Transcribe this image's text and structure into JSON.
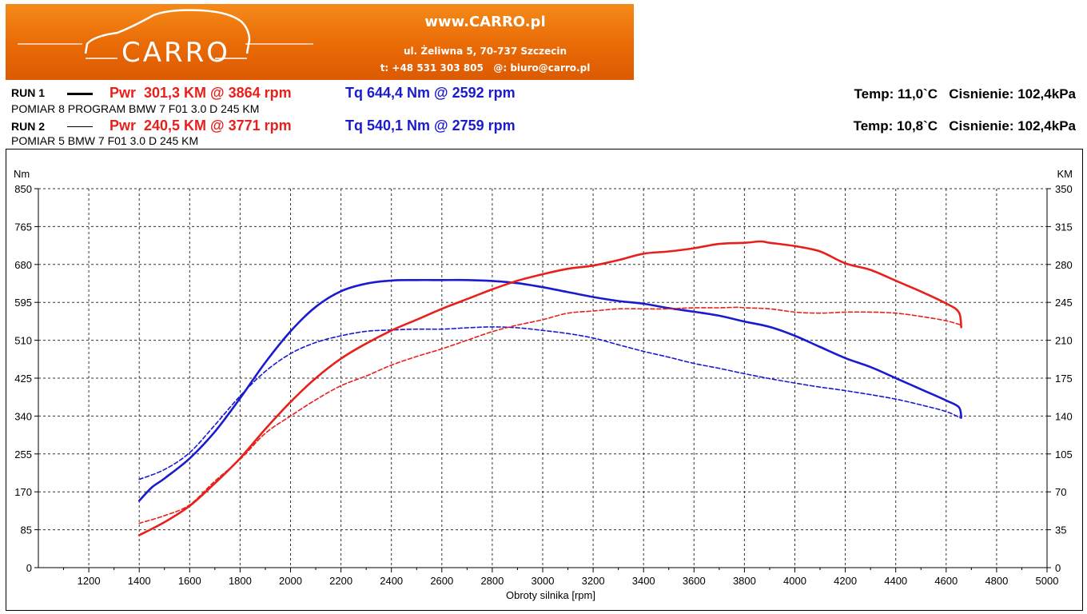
{
  "banner": {
    "logo_text": "CARRO",
    "website": "www.CARRO.pl",
    "address": "ul. Żeliwna 5, 70-737 Szczecin",
    "contact": "t: +48 531 303 805   @: biuro@carro.pl"
  },
  "runs": [
    {
      "label": "RUN 1",
      "pwr": "Pwr  301,3 KM @ 3864 rpm",
      "tq": "Tq 644,4 Nm @ 2592 rpm",
      "description": "POMIAR 8 PROGRAM BMW 7 F01 3.0 D 245 KM",
      "env": "Temp: 11,0`C   Cisnienie: 102,4kPa"
    },
    {
      "label": "RUN 2",
      "pwr": "Pwr  240,5 KM @ 3771 rpm",
      "tq": "Tq 540,1 Nm @ 2759 rpm",
      "description": "POMIAR 5 BMW 7 F01 3.0 D 245 KM",
      "env": "Temp: 10,8`C   Cisnienie: 102,4kPa"
    }
  ],
  "colors": {
    "power": "#e8201c",
    "torque": "#1a1ad0",
    "banner": "#ef7a10"
  },
  "chart_data": {
    "type": "line",
    "title": "",
    "xlabel": "Obroty silnika [rpm]",
    "ylabel_left": "Nm",
    "ylabel_right": "KM",
    "xlim": [
      1000,
      5000
    ],
    "ylim_left": [
      0,
      850
    ],
    "ylim_right": [
      0,
      350
    ],
    "x_ticks": [
      1200,
      1400,
      1600,
      1800,
      2000,
      2200,
      2400,
      2600,
      2800,
      3000,
      3200,
      3400,
      3600,
      3800,
      4000,
      4200,
      4400,
      4600,
      4800,
      5000
    ],
    "y_left_ticks": [
      0,
      85,
      170,
      255,
      340,
      425,
      510,
      595,
      680,
      765,
      850
    ],
    "y_right_ticks": [
      0,
      35,
      70,
      105,
      140,
      175,
      210,
      245,
      280,
      315,
      350
    ],
    "grid": true,
    "series": [
      {
        "name": "RUN 1 Torque",
        "axis": "left",
        "style": "solid",
        "color": "#1a1ad0",
        "x": [
          1400,
          1450,
          1500,
          1600,
          1700,
          1800,
          1900,
          2000,
          2100,
          2200,
          2300,
          2400,
          2500,
          2600,
          2700,
          2800,
          2900,
          3000,
          3100,
          3200,
          3300,
          3400,
          3500,
          3600,
          3700,
          3800,
          3900,
          4000,
          4100,
          4200,
          4300,
          4400,
          4500,
          4600,
          4650,
          4660
        ],
        "y": [
          150,
          180,
          200,
          245,
          305,
          380,
          460,
          530,
          585,
          620,
          637,
          644,
          645,
          645,
          645,
          643,
          638,
          629,
          618,
          607,
          598,
          592,
          582,
          574,
          565,
          552,
          540,
          520,
          495,
          470,
          450,
          425,
          400,
          375,
          360,
          338
        ]
      },
      {
        "name": "RUN 2 Torque",
        "axis": "left",
        "style": "dashed",
        "color": "#1a1ad0",
        "x": [
          1400,
          1500,
          1600,
          1700,
          1800,
          1900,
          2000,
          2100,
          2200,
          2300,
          2400,
          2500,
          2600,
          2700,
          2800,
          2900,
          3000,
          3100,
          3200,
          3300,
          3400,
          3500,
          3600,
          3700,
          3800,
          3900,
          4000,
          4100,
          4200,
          4300,
          4400,
          4500,
          4600,
          4660
        ],
        "y": [
          198,
          220,
          258,
          320,
          385,
          440,
          480,
          505,
          520,
          530,
          533,
          535,
          535,
          538,
          540,
          538,
          532,
          525,
          515,
          500,
          485,
          472,
          458,
          447,
          435,
          424,
          414,
          405,
          397,
          388,
          378,
          365,
          350,
          335
        ]
      },
      {
        "name": "RUN 1 Power",
        "axis": "right",
        "style": "solid",
        "color": "#e8201c",
        "x": [
          1400,
          1500,
          1600,
          1700,
          1800,
          1900,
          2000,
          2100,
          2200,
          2300,
          2400,
          2500,
          2600,
          2700,
          2800,
          2900,
          3000,
          3100,
          3200,
          3300,
          3400,
          3500,
          3600,
          3700,
          3800,
          3864,
          3900,
          4000,
          4100,
          4200,
          4300,
          4400,
          4500,
          4600,
          4650,
          4660
        ],
        "y": [
          30,
          42,
          57,
          78,
          101,
          128,
          153,
          175,
          193,
          207,
          219,
          229,
          239,
          248,
          257,
          265,
          271,
          276,
          279,
          284,
          290,
          292,
          295,
          299,
          300,
          301.3,
          300,
          297,
          292,
          281,
          275,
          265,
          255,
          244,
          236,
          222
        ]
      },
      {
        "name": "RUN 2 Power",
        "axis": "right",
        "style": "dashed",
        "color": "#e8201c",
        "x": [
          1400,
          1500,
          1600,
          1700,
          1800,
          1900,
          2000,
          2100,
          2200,
          2300,
          2400,
          2500,
          2600,
          2700,
          2800,
          2900,
          3000,
          3100,
          3200,
          3300,
          3400,
          3500,
          3600,
          3700,
          3771,
          3800,
          3900,
          4000,
          4100,
          4200,
          4300,
          4400,
          4500,
          4600,
          4660
        ],
        "y": [
          41,
          48,
          58,
          80,
          100,
          124,
          140,
          155,
          168,
          177,
          187,
          195,
          202,
          210,
          218,
          224,
          229,
          235,
          237,
          239,
          239,
          239,
          240,
          240,
          240.5,
          240,
          239,
          236,
          235,
          236,
          236,
          235,
          232,
          228,
          224
        ]
      }
    ]
  }
}
